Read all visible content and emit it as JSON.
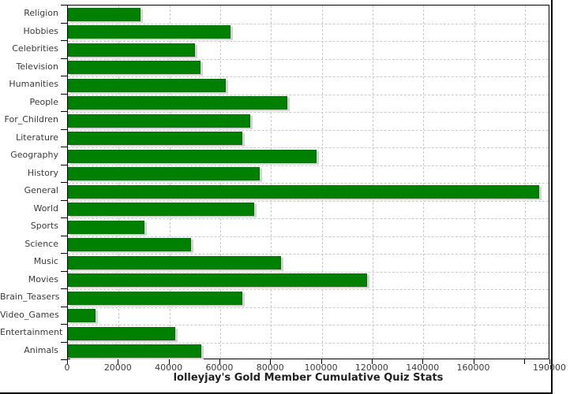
{
  "chart_data": {
    "type": "bar",
    "orientation": "horizontal",
    "title": "lolleyjay's Gold Member Cumulative Quiz Stats",
    "categories": [
      "Religion",
      "Hobbies",
      "Celebrities",
      "Television",
      "Humanities",
      "People",
      "For_Children",
      "Literature",
      "Geography",
      "History",
      "General",
      "World",
      "Sports",
      "Science",
      "Music",
      "Movies",
      "Brain_Teasers",
      "Video_Games",
      "Entertainment",
      "Animals"
    ],
    "values": [
      28500,
      64200,
      50200,
      52100,
      62100,
      86300,
      71900,
      68600,
      98100,
      75700,
      185500,
      73300,
      30300,
      48400,
      84100,
      118000,
      68600,
      11000,
      42200,
      52700
    ],
    "xlabel": "",
    "ylabel": "",
    "xlim": [
      0,
      190000
    ],
    "x_ticks": [
      {
        "value": 0,
        "label": "0"
      },
      {
        "value": 20000,
        "label": "20000"
      },
      {
        "value": 40000,
        "label": "40000"
      },
      {
        "value": 60000,
        "label": "60000"
      },
      {
        "value": 80000,
        "label": "80000"
      },
      {
        "value": 100000,
        "label": "100000"
      },
      {
        "value": 120000,
        "label": "120000"
      },
      {
        "value": 140000,
        "label": "140000"
      },
      {
        "value": 160000,
        "label": "160000"
      },
      {
        "value": 180000,
        "label": ""
      },
      {
        "value": 190000,
        "label": "190000"
      }
    ],
    "grid": true,
    "legend": "none",
    "title_position": "bottom",
    "bar_color": "#008000",
    "bar_edge_color": "#0a6e0a",
    "shadow_color": "#d4d4d4",
    "grid_color": "#c9c9c9",
    "axis_color": "#000000",
    "background": "#ffffff"
  }
}
